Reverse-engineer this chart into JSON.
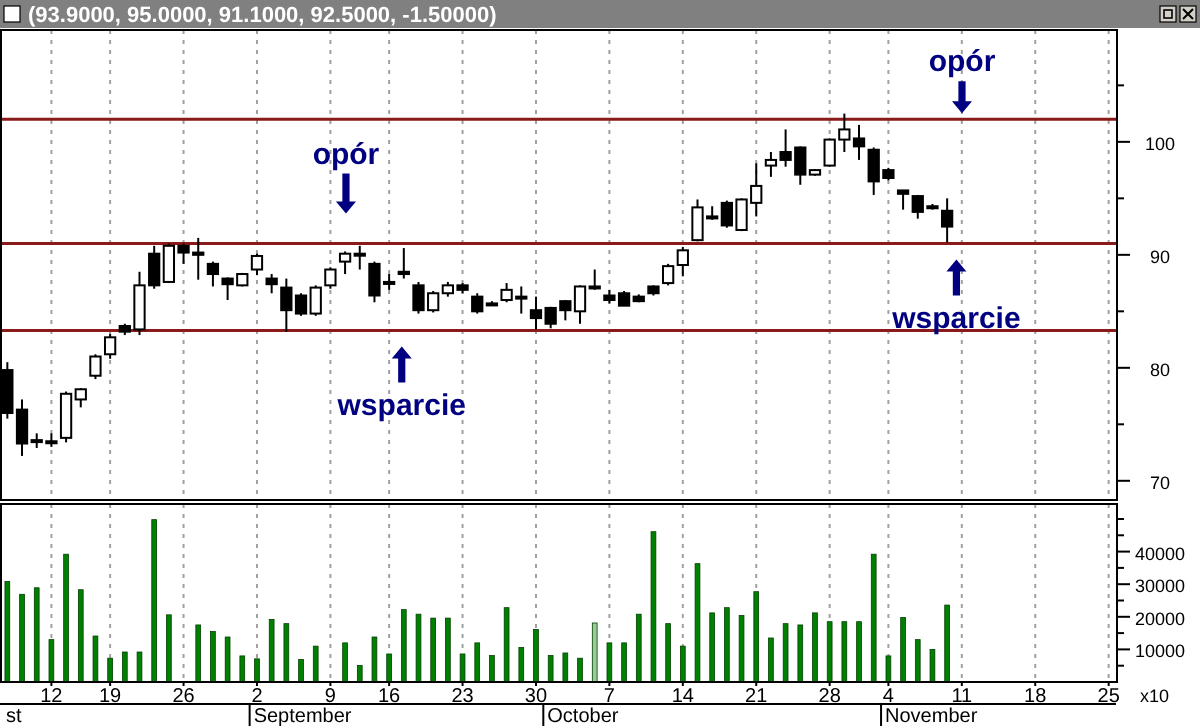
{
  "chart_data": [
    {
      "type": "candlestick",
      "title": "(93.9000, 95.0000, 91.1000, 92.5000, -1.50000)",
      "categories": [
        null,
        null,
        null,
        "12",
        null,
        null,
        null,
        "19",
        null,
        null,
        null,
        null,
        "26",
        null,
        null,
        null,
        null,
        "2",
        null,
        null,
        null,
        null,
        "9",
        null,
        null,
        null,
        "16",
        null,
        null,
        null,
        null,
        "23",
        null,
        null,
        null,
        null,
        "30",
        null,
        null,
        null,
        null,
        "7",
        null,
        null,
        null,
        null,
        "14",
        null,
        null,
        null,
        null,
        "21",
        null,
        null,
        null,
        null,
        "28",
        null,
        null,
        null,
        "4",
        null,
        null,
        null,
        null,
        "11",
        null,
        null,
        null,
        null,
        "18",
        null,
        null,
        null,
        null,
        "25"
      ],
      "ohlc": [
        [
          79.8,
          80.5,
          75.5,
          76.0
        ],
        [
          76.3,
          77.2,
          72.2,
          73.3
        ],
        [
          73.6,
          74.2,
          72.9,
          73.5
        ],
        [
          73.4,
          74.2,
          73.0,
          73.5
        ],
        [
          73.8,
          77.9,
          73.4,
          77.7
        ],
        [
          77.2,
          78.2,
          76.5,
          78.1
        ],
        [
          79.3,
          81.2,
          79.0,
          81.0
        ],
        [
          81.2,
          83.0,
          80.8,
          82.7
        ],
        [
          83.7,
          83.9,
          82.9,
          83.2
        ],
        [
          83.4,
          88.5,
          82.9,
          87.3
        ],
        [
          90.1,
          90.8,
          87.0,
          87.3
        ],
        [
          87.6,
          91.0,
          87.5,
          90.8
        ],
        [
          90.8,
          91.0,
          89.2,
          90.2
        ],
        [
          90.2,
          91.5,
          87.8,
          90.0
        ],
        [
          89.2,
          89.4,
          87.2,
          88.3
        ],
        [
          87.9,
          88.0,
          86.0,
          87.4
        ],
        [
          87.3,
          88.4,
          87.2,
          88.3
        ],
        [
          88.7,
          90.1,
          88.2,
          89.9
        ],
        [
          87.9,
          88.3,
          86.6,
          87.4
        ],
        [
          87.1,
          87.9,
          83.2,
          85.1
        ],
        [
          86.4,
          86.6,
          84.6,
          84.8
        ],
        [
          84.8,
          87.3,
          84.6,
          87.1
        ],
        [
          87.3,
          88.9,
          87.0,
          88.7
        ],
        [
          89.4,
          90.3,
          88.3,
          90.1
        ],
        [
          90.0,
          90.8,
          88.7,
          90.1
        ],
        [
          89.2,
          89.4,
          85.8,
          86.4
        ],
        [
          87.6,
          88.3,
          86.9,
          87.5
        ],
        [
          88.5,
          90.6,
          87.9,
          88.3
        ],
        [
          87.3,
          87.6,
          84.8,
          85.1
        ],
        [
          85.1,
          86.8,
          84.9,
          86.6
        ],
        [
          86.6,
          87.6,
          86.3,
          87.3
        ],
        [
          87.3,
          87.5,
          86.6,
          86.9
        ],
        [
          86.3,
          86.6,
          84.8,
          85.0
        ],
        [
          85.6,
          85.9,
          85.5,
          85.7
        ],
        [
          86.0,
          87.5,
          85.8,
          86.9
        ],
        [
          86.3,
          87.2,
          84.8,
          86.2
        ],
        [
          85.1,
          86.3,
          83.4,
          84.4
        ],
        [
          85.3,
          85.4,
          83.5,
          83.9
        ],
        [
          85.9,
          86.0,
          84.2,
          85.1
        ],
        [
          85.0,
          87.3,
          83.9,
          87.2
        ],
        [
          87.1,
          88.7,
          86.9,
          87.2
        ],
        [
          86.4,
          86.9,
          85.7,
          86.0
        ],
        [
          86.6,
          86.8,
          85.5,
          85.5
        ],
        [
          86.3,
          86.5,
          85.8,
          85.9
        ],
        [
          87.2,
          87.3,
          86.4,
          86.6
        ],
        [
          87.5,
          89.2,
          87.3,
          89.0
        ],
        [
          89.1,
          90.7,
          88.1,
          90.4
        ],
        [
          91.3,
          94.9,
          91.2,
          94.2
        ],
        [
          93.4,
          94.3,
          93.1,
          93.3
        ],
        [
          94.6,
          94.8,
          92.4,
          92.6
        ],
        [
          92.2,
          95.0,
          92.1,
          94.9
        ],
        [
          94.6,
          98.1,
          93.4,
          96.1
        ],
        [
          97.9,
          99.1,
          96.9,
          98.4
        ],
        [
          99.1,
          101.1,
          97.8,
          98.4
        ],
        [
          99.5,
          99.6,
          96.2,
          97.1
        ],
        [
          97.1,
          97.6,
          97.0,
          97.5
        ],
        [
          97.9,
          100.3,
          97.8,
          100.2
        ],
        [
          100.2,
          102.5,
          99.1,
          101.1
        ],
        [
          100.3,
          101.5,
          98.4,
          99.6
        ],
        [
          99.3,
          99.5,
          95.3,
          96.5
        ],
        [
          97.5,
          97.7,
          96.6,
          96.8
        ],
        [
          95.7,
          95.7,
          94.0,
          95.4
        ],
        [
          95.2,
          95.3,
          93.2,
          93.8
        ],
        [
          94.3,
          94.5,
          94.0,
          94.2
        ],
        [
          93.9,
          95.0,
          91.1,
          92.5
        ],
        null,
        null,
        null,
        null,
        null,
        null,
        null,
        null,
        null,
        null,
        null
      ],
      "ylim": [
        68.3,
        109.9
      ],
      "yticks": [
        70,
        {
          "value": 75,
          "label": null
        },
        80,
        {
          "value": 85,
          "label": null
        },
        90,
        {
          "value": 95,
          "label": null
        },
        100,
        {
          "value": 105,
          "label": null
        }
      ],
      "ref_lines": [
        {
          "axis": "y",
          "value": 91.0,
          "color": "#8b1a1a"
        },
        {
          "axis": "y",
          "value": 83.3,
          "color": "#8b1a1a"
        },
        {
          "axis": "y",
          "value": 102.0,
          "color": "#8b1a1a"
        }
      ],
      "annotations": [
        {
          "text": "opór",
          "y": 91.0
        },
        {
          "text": "wsparcie",
          "y": 83.3
        },
        {
          "text": "opór",
          "y": 102.0
        },
        {
          "text": "wsparcie",
          "y": 91.0
        }
      ],
      "grid": "x",
      "tick_labels": "y"
    },
    {
      "type": "bar",
      "categories": [
        null,
        null,
        null,
        "12",
        null,
        null,
        null,
        "19",
        null,
        null,
        null,
        null,
        "26",
        null,
        null,
        null,
        null,
        "2",
        null,
        null,
        null,
        null,
        "9",
        null,
        null,
        null,
        "16",
        null,
        null,
        null,
        null,
        "23",
        null,
        null,
        null,
        null,
        "30",
        null,
        null,
        null,
        null,
        "7",
        null,
        null,
        null,
        null,
        "14",
        null,
        null,
        null,
        null,
        "21",
        null,
        null,
        null,
        null,
        "28",
        null,
        null,
        null,
        "4",
        null,
        null,
        null,
        null,
        "11",
        null,
        null,
        null,
        null,
        "18",
        null,
        null,
        null,
        null,
        "25"
      ],
      "values": [
        30800,
        26900,
        28900,
        13000,
        39200,
        28300,
        14100,
        7300,
        9200,
        9200,
        49800,
        20600,
        null,
        17500,
        15500,
        13800,
        8000,
        7100,
        19200,
        17900,
        6900,
        11000,
        null,
        12000,
        5100,
        13800,
        8600,
        22200,
        20800,
        19600,
        19600,
        8600,
        12000,
        8100,
        22800,
        10600,
        16100,
        8100,
        8900,
        7300,
        18100,
        12000,
        12000,
        20800,
        46100,
        17900,
        11000,
        36300,
        21200,
        22800,
        20400,
        27700,
        13500,
        17900,
        17500,
        21200,
        18500,
        18500,
        18500,
        39200,
        8000,
        19800,
        13000,
        10000,
        23600,
        null,
        null,
        null,
        null,
        null,
        null,
        null,
        null,
        null,
        null,
        null
      ],
      "colors": [
        "#008000",
        "#008000",
        "#008000",
        "#008000",
        "#008000",
        "#008000",
        "#008000",
        "#008000",
        "#008000",
        "#008000",
        "#008000",
        "#008000",
        "#008000",
        "#008000",
        "#008000",
        "#008000",
        "#008000",
        "#008000",
        "#008000",
        "#008000",
        "#008000",
        "#008000",
        "#008000",
        "#008000",
        "#008000",
        "#008000",
        "#008000",
        "#008000",
        "#008000",
        "#008000",
        "#008000",
        "#008000",
        "#008000",
        "#008000",
        "#008000",
        "#008000",
        "#008000",
        "#008000",
        "#008000",
        "#008000",
        "#98cc98",
        "#008000",
        "#008000",
        "#008000",
        "#008000",
        "#008000",
        "#008000",
        "#008000",
        "#008000",
        "#008000",
        "#008000",
        "#008000",
        "#008000",
        "#008000",
        "#008000",
        "#008000",
        "#008000",
        "#008000",
        "#008000",
        "#008000",
        "#008000",
        "#008000",
        "#008000",
        "#008000",
        "#008000",
        "#008000",
        "#008000",
        "#008000",
        "#008000",
        "#008000",
        "#008000",
        "#008000",
        "#008000",
        "#008000",
        "#008000",
        "#008000"
      ],
      "ylim": [
        0,
        54600
      ],
      "yticks": [
        {
          "value": 5000,
          "label": null
        },
        10000,
        {
          "value": 15000,
          "label": null
        },
        20000,
        {
          "value": 25000,
          "label": null
        },
        30000,
        {
          "value": 35000,
          "label": null
        },
        40000,
        {
          "value": 45000,
          "label": null
        },
        {
          "value": 50000,
          "label": null
        }
      ],
      "annotations": [
        "x10",
        "st",
        "September",
        "October",
        "November"
      ],
      "grid": "x"
    }
  ]
}
